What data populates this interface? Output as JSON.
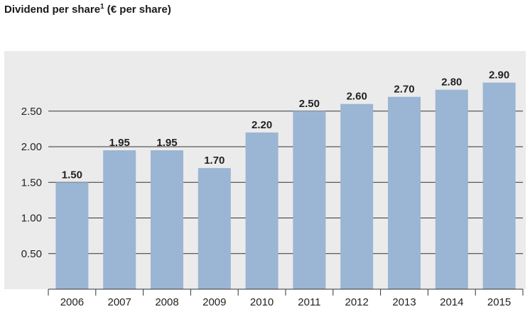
{
  "title": {
    "main": "Dividend per share",
    "superscript": "1",
    "unit": "(€ per share)"
  },
  "colors": {
    "plot_background": "#ebebeb",
    "bar": "#9bb5d4",
    "gridline": "#333333",
    "text": "#222222"
  },
  "chart_data": {
    "type": "bar",
    "title": "Dividend per share1 (€ per share)",
    "xlabel": "",
    "ylabel": "",
    "categories": [
      "2006",
      "2007",
      "2008",
      "2009",
      "2010",
      "2011",
      "2012",
      "2013",
      "2014",
      "2015"
    ],
    "values": [
      1.5,
      1.95,
      1.95,
      1.7,
      2.2,
      2.5,
      2.6,
      2.7,
      2.8,
      2.9
    ],
    "value_labels": [
      "1.50",
      "1.95",
      "1.95",
      "1.70",
      "2.20",
      "2.50",
      "2.60",
      "2.70",
      "2.80",
      "2.90"
    ],
    "yticks": [
      0.5,
      1.0,
      1.5,
      2.0,
      2.5
    ],
    "ytick_labels": [
      "0.50",
      "1.00",
      "1.50",
      "2.00",
      "2.50"
    ],
    "ylim": [
      0,
      3.0
    ],
    "grid": true,
    "legend": "none"
  }
}
